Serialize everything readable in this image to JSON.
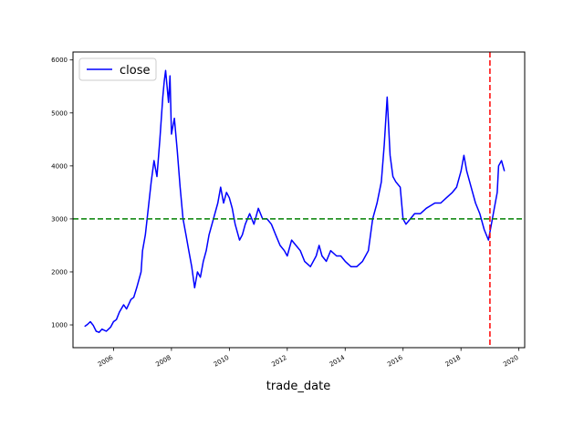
{
  "chart_data": {
    "type": "line",
    "xlabel": "trade_date",
    "ylabel": "",
    "xlim": [
      2004.6,
      2020.2
    ],
    "ylim": [
      570,
      6150
    ],
    "x_ticks": [
      2006,
      2008,
      2010,
      2012,
      2014,
      2016,
      2018,
      2020
    ],
    "y_ticks": [
      1000,
      2000,
      3000,
      4000,
      5000,
      6000
    ],
    "grid": false,
    "legend_position": "top-left",
    "series": [
      {
        "name": "close",
        "color": "#0000ff",
        "x": [
          2005.0,
          2005.1,
          2005.2,
          2005.3,
          2005.4,
          2005.5,
          2005.6,
          2005.75,
          2005.9,
          2006.0,
          2006.1,
          2006.2,
          2006.35,
          2006.45,
          2006.6,
          2006.7,
          2006.8,
          2006.95,
          2007.0,
          2007.1,
          2007.2,
          2007.3,
          2007.4,
          2007.5,
          2007.6,
          2007.7,
          2007.75,
          2007.8,
          2007.85,
          2007.9,
          2007.95,
          2008.0,
          2008.1,
          2008.2,
          2008.3,
          2008.4,
          2008.5,
          2008.6,
          2008.7,
          2008.8,
          2008.9,
          2009.0,
          2009.1,
          2009.2,
          2009.3,
          2009.45,
          2009.6,
          2009.7,
          2009.8,
          2009.9,
          2010.0,
          2010.1,
          2010.2,
          2010.35,
          2010.45,
          2010.55,
          2010.7,
          2010.85,
          2011.0,
          2011.15,
          2011.3,
          2011.45,
          2011.6,
          2011.75,
          2011.9,
          2012.0,
          2012.15,
          2012.3,
          2012.45,
          2012.6,
          2012.8,
          2013.0,
          2013.1,
          2013.2,
          2013.35,
          2013.5,
          2013.7,
          2013.85,
          2014.0,
          2014.2,
          2014.4,
          2014.6,
          2014.8,
          2014.95,
          2015.1,
          2015.25,
          2015.35,
          2015.45,
          2015.55,
          2015.65,
          2015.75,
          2015.9,
          2016.0,
          2016.1,
          2016.25,
          2016.4,
          2016.6,
          2016.8,
          2016.95,
          2017.1,
          2017.3,
          2017.5,
          2017.7,
          2017.85,
          2018.0,
          2018.1,
          2018.2,
          2018.35,
          2018.5,
          2018.65,
          2018.8,
          2018.95,
          2019.05,
          2019.15,
          2019.25,
          2019.3,
          2019.4,
          2019.5
        ],
        "y": [
          970,
          1010,
          1060,
          990,
          880,
          860,
          920,
          880,
          960,
          1060,
          1100,
          1240,
          1380,
          1300,
          1480,
          1520,
          1700,
          2000,
          2400,
          2700,
          3200,
          3700,
          4100,
          3800,
          4500,
          5300,
          5600,
          5800,
          5500,
          5200,
          5700,
          4600,
          4900,
          4300,
          3600,
          3000,
          2700,
          2400,
          2100,
          1700,
          2000,
          1900,
          2200,
          2400,
          2700,
          3000,
          3300,
          3600,
          3300,
          3500,
          3400,
          3200,
          2900,
          2600,
          2700,
          2900,
          3100,
          2900,
          3200,
          3000,
          3000,
          2900,
          2700,
          2500,
          2400,
          2300,
          2600,
          2500,
          2400,
          2200,
          2100,
          2300,
          2500,
          2300,
          2200,
          2400,
          2300,
          2300,
          2200,
          2100,
          2100,
          2200,
          2400,
          3000,
          3300,
          3700,
          4400,
          5300,
          4200,
          3800,
          3700,
          3600,
          3000,
          2900,
          3000,
          3100,
          3100,
          3200,
          3250,
          3300,
          3300,
          3400,
          3500,
          3600,
          3900,
          4200,
          3900,
          3600,
          3300,
          3100,
          2800,
          2600,
          2900,
          3200,
          3500,
          4000,
          4100,
          3900
        ]
      }
    ],
    "reference_lines": [
      {
        "orientation": "horizontal",
        "value": 3000,
        "color": "#008000",
        "style": "dashed"
      },
      {
        "orientation": "vertical",
        "value": 2019.0,
        "color": "#ff0000",
        "style": "dashed"
      }
    ]
  }
}
